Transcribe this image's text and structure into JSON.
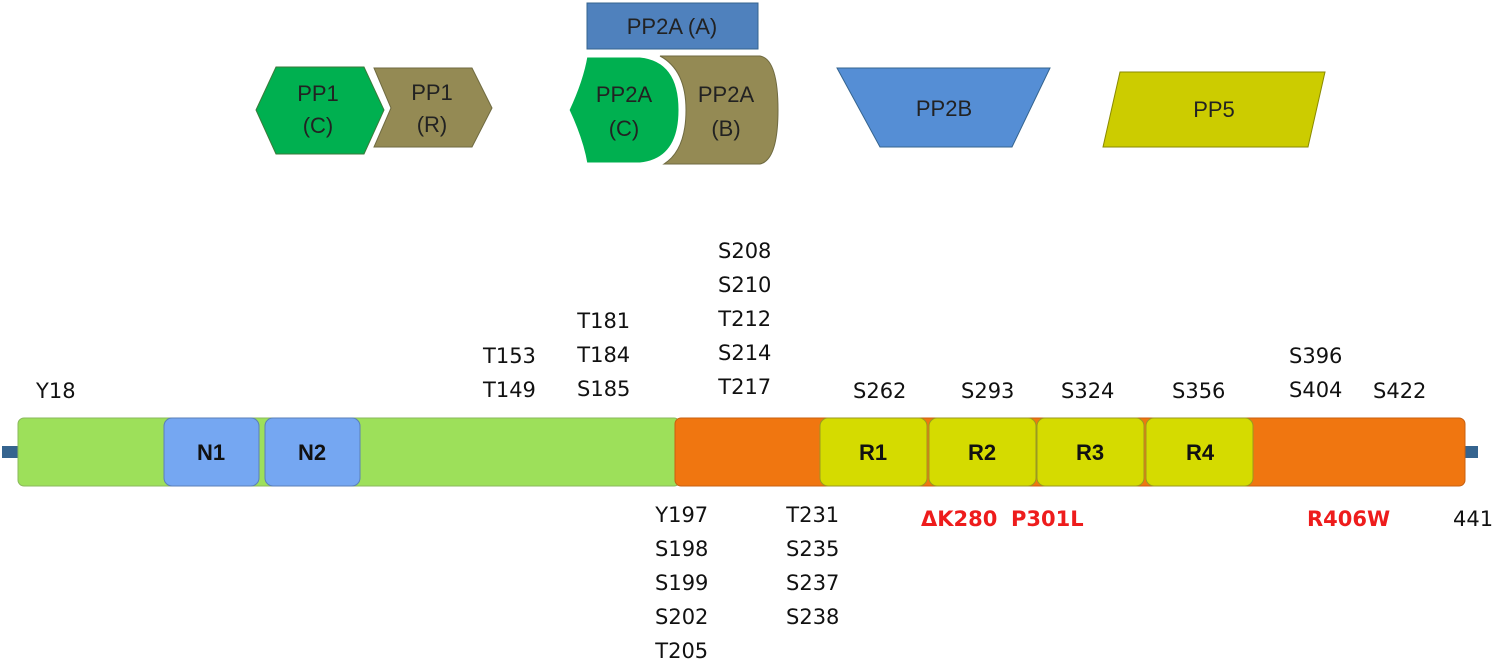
{
  "phosphatases": {
    "pp1_c": {
      "line1": "PP1",
      "line2": "(C)",
      "color": "#00b050"
    },
    "pp1_r": {
      "line1": "PP1",
      "line2": "(R)",
      "color": "#948a54"
    },
    "pp2a_a": {
      "label": "PP2A (A)",
      "color": "#4f81bd"
    },
    "pp2a_c": {
      "line1": "PP2A",
      "line2": "(C)",
      "color": "#00b050"
    },
    "pp2a_b": {
      "line1": "PP2A",
      "line2": "(B)",
      "color": "#948a54"
    },
    "pp2b": {
      "label": "PP2B",
      "color": "#558ed5"
    },
    "pp5": {
      "label": "PP5",
      "color": "#cccc00"
    }
  },
  "protein": {
    "n_terminal_color": "#9de05a",
    "c_terminal_color": "#f07610",
    "linker_color": "#35648f",
    "end_residue": "441",
    "domains": [
      {
        "label": "N1",
        "color": "#75a7f2"
      },
      {
        "label": "N2",
        "color": "#75a7f2"
      },
      {
        "label": "R1",
        "color": "#d5db00"
      },
      {
        "label": "R2",
        "color": "#d5db00"
      },
      {
        "label": "R3",
        "color": "#d5db00"
      },
      {
        "label": "R4",
        "color": "#d5db00"
      }
    ]
  },
  "sites_above": {
    "y18": [
      "Y18"
    ],
    "t153_group": [
      "T153",
      "T149"
    ],
    "t181_group": [
      "T181",
      "T184",
      "S185"
    ],
    "s208_group": [
      "S208",
      "S210",
      "T212",
      "S214",
      "T217"
    ],
    "s262": [
      "S262"
    ],
    "s293": [
      "S293"
    ],
    "s324": [
      "S324"
    ],
    "s356": [
      "S356"
    ],
    "s396_group": [
      "S396",
      "S404"
    ],
    "s422": [
      "S422"
    ]
  },
  "sites_below": {
    "y197_group": [
      "Y197",
      "S198",
      "S199",
      "S202",
      "T205"
    ],
    "t231_group": [
      "T231",
      "S235",
      "S237",
      "S238"
    ]
  },
  "mutations": [
    "ΔK280",
    "P301L",
    "R406W"
  ],
  "mutation_color": "#ee1c1c"
}
